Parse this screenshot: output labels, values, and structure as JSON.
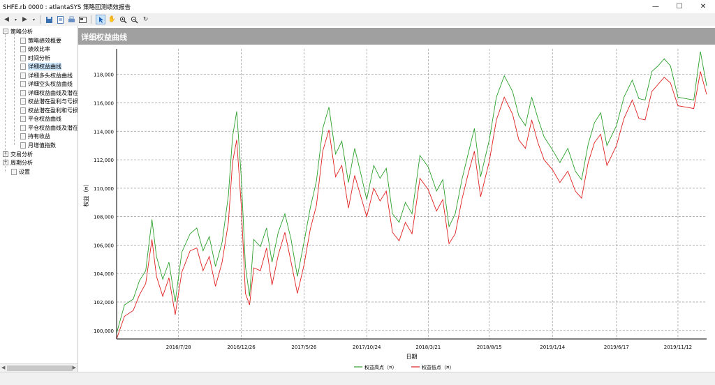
{
  "window": {
    "title": "SHFE.rb 0000 : atlantaSYS 策略回测绩效报告"
  },
  "titlebar": {
    "minimize": "—",
    "maximize": "☐",
    "close": "✕"
  },
  "toolbar": {
    "icons": [
      "back-icon",
      "dropdown-icon",
      "forward-icon",
      "dropdown-icon",
      "save-icon",
      "preview-icon",
      "print-icon",
      "export-icon",
      "pointer-icon",
      "pan-icon",
      "zoom-in-icon",
      "zoom-out-icon",
      "refresh-icon"
    ]
  },
  "sidebar": {
    "groups": [
      {
        "label": "策略分析",
        "expanded": true,
        "items": [
          "策略绩效概要",
          "绩效比率",
          "时间分析",
          "详细权益曲线",
          "详细多头权益曲线",
          "详细空头权益曲线",
          "详细权益曲线及潜在",
          "权益潜在盈利与亏损",
          "权益潜在盈利和亏损",
          "平仓权益曲线",
          "平仓权益曲线及潜在",
          "持有收益",
          "月增值指数"
        ],
        "selected": "详细权益曲线"
      },
      {
        "label": "交易分析",
        "expanded": false
      },
      {
        "label": "周期分析",
        "expanded": false
      },
      {
        "label": "设置",
        "leaf": true
      }
    ]
  },
  "panel": {
    "title": "详细权益曲线"
  },
  "chart_data": {
    "type": "line",
    "title": "",
    "xlabel": "日期",
    "ylabel": "权益（¤）",
    "ylim": [
      99400,
      119800
    ],
    "yticks": [
      "100,000",
      "102,000",
      "104,000",
      "106,000",
      "108,000",
      "110,000",
      "112,000",
      "114,000",
      "116,000",
      "118,000"
    ],
    "ytick_values": [
      100000,
      102000,
      104000,
      106000,
      108000,
      110000,
      112000,
      114000,
      116000,
      118000
    ],
    "xticks": [
      "2016/7/28",
      "2016/12/26",
      "2017/5/26",
      "2017/10/24",
      "2018/3/21",
      "2018/8/15",
      "2019/1/14",
      "2019/6/17",
      "2019/11/12"
    ],
    "x": [
      "2016/3/1",
      "2016/3/20",
      "2016/4/10",
      "2016/4/25",
      "2016/5/10",
      "2016/5/25",
      "2016/6/5",
      "2016/6/20",
      "2016/7/5",
      "2016/7/20",
      "2016/8/5",
      "2016/8/25",
      "2016/9/10",
      "2016/9/25",
      "2016/10/10",
      "2016/10/25",
      "2016/11/10",
      "2016/11/25",
      "2016/12/5",
      "2016/12/15",
      "2016/12/26",
      "2017/1/5",
      "2017/1/15",
      "2017/1/25",
      "2017/2/10",
      "2017/2/25",
      "2017/3/10",
      "2017/3/25",
      "2017/4/10",
      "2017/4/25",
      "2017/5/10",
      "2017/5/26",
      "2017/6/10",
      "2017/6/25",
      "2017/7/10",
      "2017/7/25",
      "2017/8/10",
      "2017/8/25",
      "2017/9/10",
      "2017/9/25",
      "2017/10/10",
      "2017/10/24",
      "2017/11/10",
      "2017/11/25",
      "2017/12/10",
      "2017/12/25",
      "2018/1/10",
      "2018/1/25",
      "2018/2/10",
      "2018/3/1",
      "2018/3/21",
      "2018/4/10",
      "2018/4/25",
      "2018/5/10",
      "2018/5/25",
      "2018/6/10",
      "2018/6/25",
      "2018/7/10",
      "2018/7/25",
      "2018/8/15",
      "2018/9/1",
      "2018/9/20",
      "2018/10/10",
      "2018/10/25",
      "2018/11/10",
      "2018/11/25",
      "2018/12/10",
      "2018/12/25",
      "2019/1/14",
      "2019/2/1",
      "2019/2/20",
      "2019/3/10",
      "2019/3/25",
      "2019/4/10",
      "2019/4/25",
      "2019/5/10",
      "2019/5/25",
      "2019/6/17",
      "2019/7/5",
      "2019/7/25",
      "2019/8/10",
      "2019/8/25",
      "2019/9/10",
      "2019/9/25",
      "2019/10/10",
      "2019/10/25",
      "2019/11/12",
      "2019/12/1",
      "2019/12/20",
      "2020/1/5",
      "2020/1/20"
    ],
    "series": [
      {
        "name": "权益高点（¤）",
        "color": "#2ca02c",
        "values": [
          99800,
          101800,
          102200,
          103500,
          104200,
          107800,
          105200,
          103600,
          104800,
          102000,
          105500,
          106800,
          107200,
          105600,
          106600,
          104500,
          106200,
          109500,
          113600,
          115400,
          110800,
          104500,
          102400,
          106400,
          105900,
          107200,
          104800,
          106900,
          108200,
          106400,
          103800,
          106200,
          108600,
          110500,
          114200,
          115700,
          112400,
          113300,
          110400,
          112800,
          111000,
          109200,
          111600,
          110700,
          111400,
          108200,
          107600,
          109000,
          108200,
          112300,
          111500,
          109800,
          110600,
          107300,
          108200,
          110600,
          112400,
          114200,
          110800,
          113400,
          116400,
          117900,
          116800,
          115100,
          114400,
          116400,
          114900,
          113600,
          112700,
          111800,
          112800,
          111200,
          110600,
          113100,
          114600,
          115300,
          113000,
          114400,
          116400,
          117600,
          116300,
          116200,
          118200,
          118600,
          119100,
          118600,
          116400,
          116300,
          116200,
          119600,
          117200
        ],
        "line_label": "权益高点（¤）"
      },
      {
        "name": "权益低点（¤）",
        "color": "#e02020",
        "values": [
          99400,
          101000,
          101400,
          102500,
          103300,
          106400,
          103800,
          102400,
          103700,
          101100,
          104100,
          105600,
          105800,
          104200,
          105200,
          103100,
          104800,
          107600,
          111800,
          113400,
          108800,
          102600,
          101800,
          104400,
          104200,
          105800,
          103200,
          105300,
          106900,
          104800,
          102600,
          104600,
          107100,
          108800,
          112600,
          114100,
          110800,
          111600,
          108600,
          110900,
          109400,
          108000,
          110000,
          109100,
          109800,
          106900,
          106300,
          107600,
          106800,
          110700,
          109900,
          108400,
          109200,
          106100,
          106800,
          109200,
          111000,
          112600,
          109400,
          111900,
          114800,
          116400,
          115200,
          113400,
          112800,
          114800,
          113200,
          112000,
          111300,
          110400,
          111200,
          109800,
          109300,
          111800,
          113200,
          113800,
          111600,
          113000,
          114900,
          116200,
          114900,
          114800,
          116800,
          117300,
          117800,
          117400,
          115800,
          115700,
          115600,
          118200,
          116600
        ],
        "line_label": "权益低点（¤）"
      }
    ],
    "grid": true,
    "legend": "bottom-center"
  }
}
